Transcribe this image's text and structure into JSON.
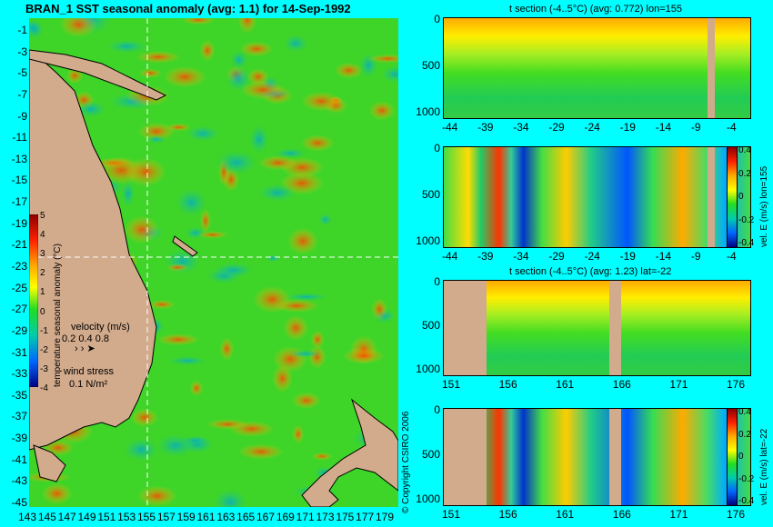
{
  "main_map": {
    "title": "BRAN_1 SST seasonal anomaly (avg: 1.1) for 14-Sep-1992",
    "lat_labels": [
      "-1",
      "-3",
      "-5",
      "-7",
      "-9",
      "-11",
      "-13",
      "-15",
      "-17",
      "-19",
      "-21",
      "-23",
      "-25",
      "-27",
      "-29",
      "-31",
      "-33",
      "-35",
      "-37",
      "-39",
      "-41",
      "-43",
      "-45"
    ],
    "lon_labels": [
      "143",
      "145",
      "147",
      "149",
      "151",
      "153",
      "155",
      "157",
      "159",
      "161",
      "163",
      "165",
      "167",
      "169",
      "171",
      "173",
      "175",
      "177",
      "179"
    ],
    "colorbar": {
      "label": "temperature seasonal anomaly (°C)",
      "ticks": [
        "5",
        "4",
        "3",
        "2",
        "1",
        "0",
        "-1",
        "-2",
        "-3",
        "-4"
      ]
    },
    "velocity_legend": {
      "title": "velocity (m/s)",
      "values": "0.2 0.4 0.8"
    },
    "wind_legend": {
      "title": "wind stress",
      "value": "0.1 N/m²"
    },
    "crosshair": {
      "lon": 155,
      "lat": -22
    }
  },
  "copyright": "© Copyright CSIRO 2006",
  "panels": [
    {
      "title": "t section (-4..5°C) (avg: 0.772) lon=155",
      "x_ticks": [
        "-44",
        "-39",
        "-34",
        "-29",
        "-24",
        "-19",
        "-14",
        "-9",
        "-4"
      ],
      "y_ticks": [
        "0",
        "500",
        "1000"
      ],
      "has_colorbar": false
    },
    {
      "title": "",
      "x_ticks": [
        "-44",
        "-39",
        "-34",
        "-29",
        "-24",
        "-19",
        "-14",
        "-9",
        "-4"
      ],
      "y_ticks": [
        "0",
        "500",
        "1000"
      ],
      "has_colorbar": true,
      "colorbar_label": "vel. E (m/s) lon=155",
      "colorbar_ticks": [
        "0.4",
        "0.2",
        "0",
        "-0.2",
        "-0.4"
      ]
    },
    {
      "title": "t section (-4..5°C) (avg: 1.23) lat=-22",
      "x_ticks": [
        "151",
        "156",
        "161",
        "166",
        "171",
        "176"
      ],
      "y_ticks": [
        "0",
        "500",
        "1000"
      ],
      "has_colorbar": false
    },
    {
      "title": "",
      "x_ticks": [
        "151",
        "156",
        "161",
        "166",
        "171",
        "176"
      ],
      "y_ticks": [
        "0",
        "500",
        "1000"
      ],
      "has_colorbar": true,
      "colorbar_label": "vel. E (m/s) lat=-22",
      "colorbar_ticks": [
        "0.4",
        "0.2",
        "0",
        "-0.2",
        "-0.4"
      ]
    }
  ],
  "colors": {
    "background": "#00ffff",
    "land": "#d2aa8c",
    "anomaly_base": "#44dd22"
  }
}
